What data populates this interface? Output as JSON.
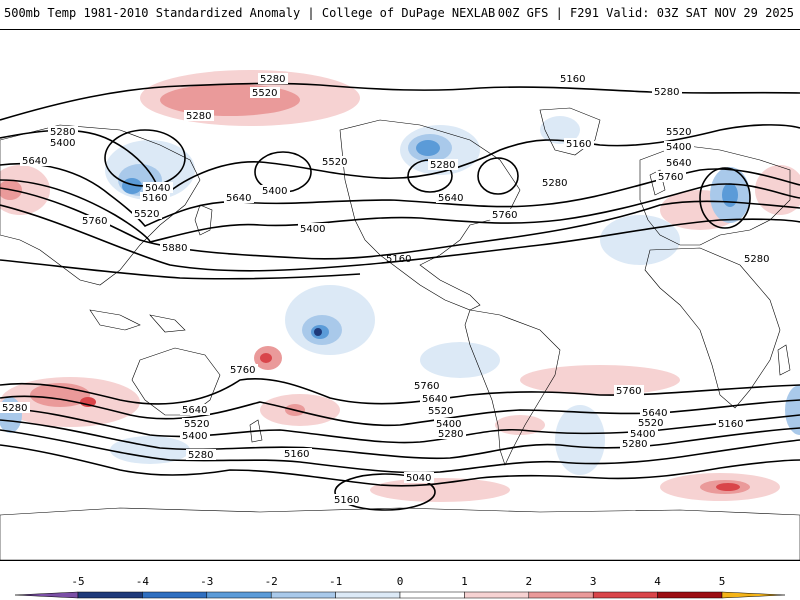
{
  "header": {
    "title_left": "500mb Temp 1981-2010 Standardized Anomaly | College of DuPage NEXLAB",
    "title_right": "00Z GFS | F291 Valid: 03Z SAT NOV 29 2025"
  },
  "map": {
    "height_labels": [
      "5280",
      "5520",
      "5280",
      "5280",
      "5400",
      "5640",
      "5160",
      "5040",
      "5520",
      "5400",
      "5640",
      "5760",
      "5880",
      "5160",
      "5280",
      "5280",
      "5520",
      "5640",
      "5400",
      "5760",
      "5160",
      "5280",
      "5400",
      "5640",
      "5760",
      "5520",
      "5760",
      "5640",
      "5520",
      "5400",
      "5280",
      "5160",
      "5040",
      "5160",
      "5280",
      "5400",
      "5520",
      "5640",
      "5760",
      "5280",
      "5160",
      "5760",
      "5640",
      "5520",
      "5400",
      "5280",
      "5160",
      "5280"
    ]
  },
  "colorbar": {
    "ticks": [
      "-5",
      "-4",
      "-3",
      "-2",
      "-1",
      "0",
      "1",
      "2",
      "3",
      "4",
      "5"
    ],
    "colors": [
      "#7b4fa6",
      "#1f3a7a",
      "#2f6fc0",
      "#5b9bd8",
      "#a9c9ea",
      "#dce9f6",
      "#ffffff",
      "#f6d2d2",
      "#ea9a9a",
      "#d9454a",
      "#9c0e13",
      "#f5b418"
    ]
  }
}
